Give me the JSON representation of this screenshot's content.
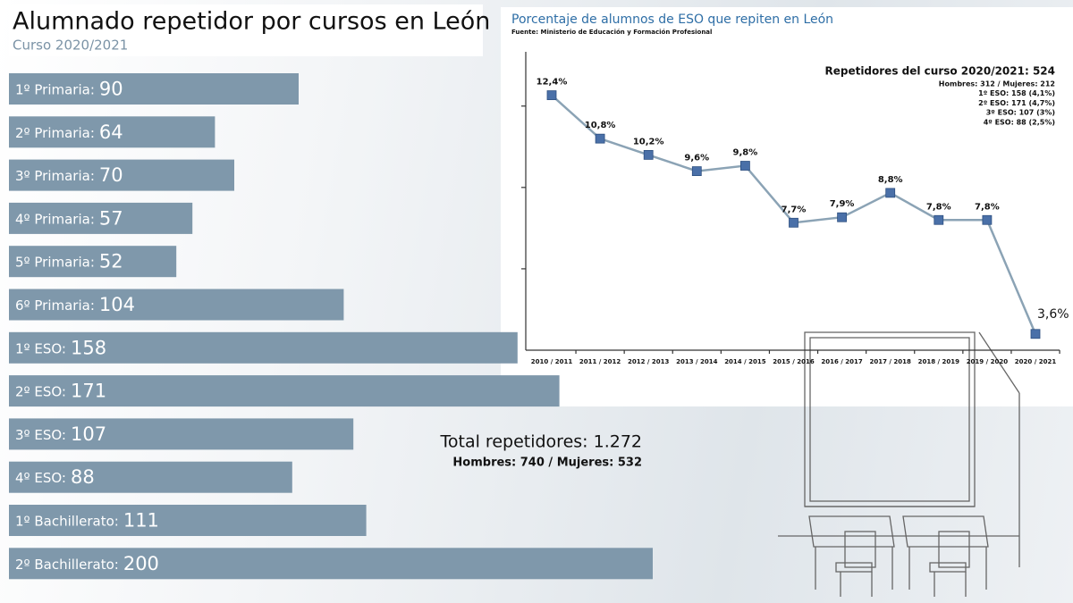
{
  "chart_data": [
    {
      "type": "barh",
      "title": "Alumnado repetidor por cursos en León",
      "subtitle": "Curso 2020/2021",
      "categories": [
        "1º Primaria:",
        "2º Primaria:",
        "3º Primaria:",
        "4º Primaria:",
        "5º Primaria:",
        "6º Primaria:",
        "1º ESO:",
        "2º ESO:",
        "3º ESO:",
        "4º ESO:",
        "1º Bachillerato:",
        "2º Bachillerato:"
      ],
      "values": [
        90,
        64,
        70,
        57,
        52,
        104,
        158,
        171,
        107,
        88,
        111,
        200
      ],
      "color": "#7f98ab",
      "annotations": [
        "Total repetidores: 1.272",
        "Hombres: 740 / Mujeres: 532"
      ]
    },
    {
      "type": "line",
      "title": "Porcentaje de alumnos de ESO que repiten en León",
      "subtitle": "Fuente: Ministerio de Educación y Formación Profesional",
      "categories": [
        "2010 / 2011",
        "2011 / 2012",
        "2012 / 2013",
        "2013 / 2014",
        "2014 / 2015",
        "2015 / 2016",
        "2016 / 2017",
        "2017 / 2018",
        "2018 / 2019",
        "2019 / 2020",
        "2020 / 2021"
      ],
      "values": [
        12.4,
        10.8,
        10.2,
        9.6,
        9.8,
        7.7,
        7.9,
        8.8,
        7.8,
        7.8,
        3.6
      ],
      "value_labels": [
        "12,4%",
        "10,8%",
        "10,2%",
        "9,6%",
        "9,8%",
        "7,7%",
        "7,9%",
        "8,8%",
        "7,8%",
        "7,8%",
        "3,6%"
      ],
      "color": "#8ba3b5",
      "marker_color": "#4a70a8",
      "ylim": [
        3,
        14
      ],
      "yticks": [
        6,
        9,
        12
      ],
      "annotations": [
        "Repetidores del curso 2020/2021: 524",
        "Hombres: 312 / Mujeres: 212",
        "1º ESO: 158 (4,1%)",
        "2º ESO: 171 (4,7%)",
        "3º ESO: 107 (3%)",
        "4º ESO: 88 (2,5%)"
      ]
    }
  ]
}
